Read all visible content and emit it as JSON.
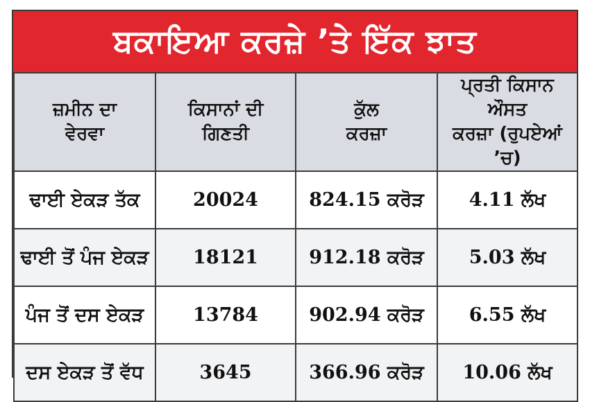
{
  "title": "ਬਕਾਇਆ ਕਰਜ਼ੇ ’ਤੇ ਇੱਕ ਝਾਤ",
  "headers": [
    {
      "line1": "ਜ਼ਮੀਨ ਦਾ",
      "line2": "ਵੇਰਵਾ"
    },
    {
      "line1": "ਕਿਸਾਨਾਂ ਦੀ",
      "line2": "ਗਿਣਤੀ"
    },
    {
      "line1": "ਕੁੱਲ",
      "line2": "ਕਰਜ਼ਾ"
    },
    {
      "line1": "ਪ੍ਰਤੀ ਕਿਸਾਨ ਔਸਤ",
      "line2": "ਕਰਜ਼ਾ (ਰੁਪਏਆਂ ’ਚ)"
    }
  ],
  "rows": [
    {
      "land": "ਢਾਈ ਏਕੜ ਤੱਕ",
      "farmers": "20024",
      "total": "824.15 ਕਰੋੜ",
      "average": "4.11 ਲੱਖ"
    },
    {
      "land": "ਢਾਈ ਤੋਂ ਪੰਜ ਏਕੜ",
      "farmers": "18121",
      "total": "912.18 ਕਰੋੜ",
      "average": "5.03 ਲੱਖ"
    },
    {
      "land": "ਪੰਜ ਤੋਂ ਦਸ ਏਕੜ",
      "farmers": "13784",
      "total": "902.94 ਕਰੋੜ",
      "average": "6.55 ਲੱਖ"
    },
    {
      "land": "ਦਸ ਏਕੜ ਤੋਂ ਵੱਧ",
      "farmers": "3645",
      "total": "366.96 ਕਰੋੜ",
      "average": "10.06 ਲੱਖ"
    }
  ],
  "colors": {
    "title_bg": "#e2262e",
    "header_bg": "#d9dde3",
    "border": "#3a3a3a"
  }
}
